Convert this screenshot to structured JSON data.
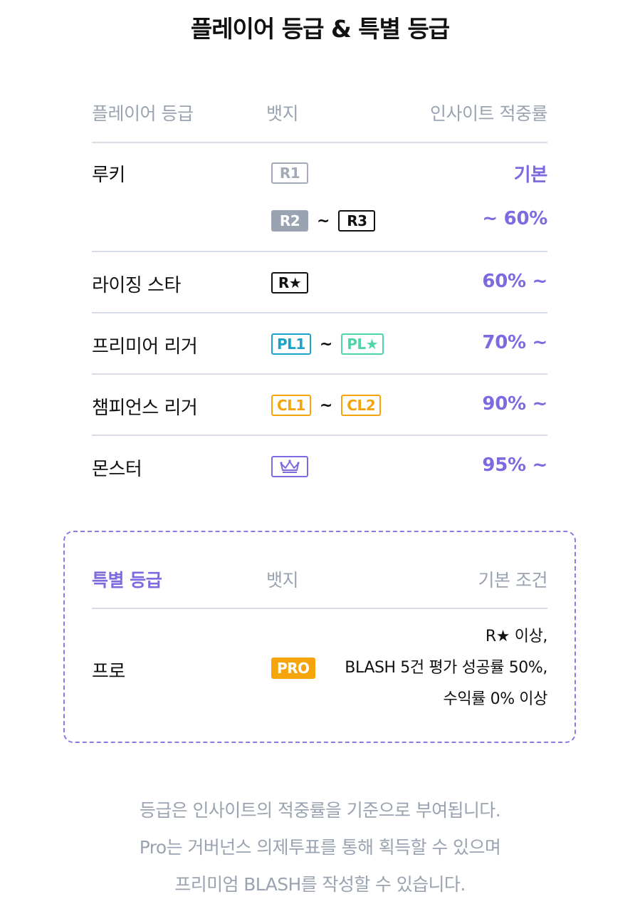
{
  "title": "플레이어 등급 & 특별 등급",
  "player_table": {
    "headers": {
      "grade": "플레이어 등급",
      "badge": "뱃지",
      "accuracy": "인사이트 적중률"
    },
    "rows": [
      {
        "name": "루키",
        "badges": [
          "R1"
        ],
        "rate": "기본"
      },
      {
        "name": "",
        "badges": [
          "R2",
          "R3"
        ],
        "separator": "~",
        "rate": "~ 60%"
      },
      {
        "name": "라이징 스타",
        "badges": [
          "R★"
        ],
        "rate": "60% ~"
      },
      {
        "name": "프리미어 리거",
        "badges": [
          "PL1",
          "PL★"
        ],
        "separator": "~",
        "rate": "70% ~"
      },
      {
        "name": "챔피언스 리거",
        "badges": [
          "CL1",
          "CL2"
        ],
        "separator": "~",
        "rate": "90% ~"
      },
      {
        "name": "몬스터",
        "badges": [
          "crown-icon"
        ],
        "rate": "95% ~"
      }
    ]
  },
  "special_table": {
    "headers": {
      "grade": "특별 등급",
      "badge": "뱃지",
      "condition": "기본 조건"
    },
    "rows": [
      {
        "name": "프로",
        "badge": "PRO",
        "conditions": [
          "R★ 이상,",
          "BLASH 5건 평가 성공률 50%,",
          "수익률 0% 이상"
        ]
      }
    ]
  },
  "notes": [
    "등급은 인사이트의 적중률을 기준으로 부여됩니다.",
    "Pro는 거버넌스 의제투표를 통해 획득할 수 있으며",
    "프리미엄 BLASH를 작성할 수 있습니다."
  ],
  "colors": {
    "accent": "#7d6ae0",
    "muted": "#9aa3b2",
    "divider": "#d8dce6",
    "premier": "#1aa3c8",
    "premier_star": "#4fd6a8",
    "champions": "#f5a40c"
  }
}
